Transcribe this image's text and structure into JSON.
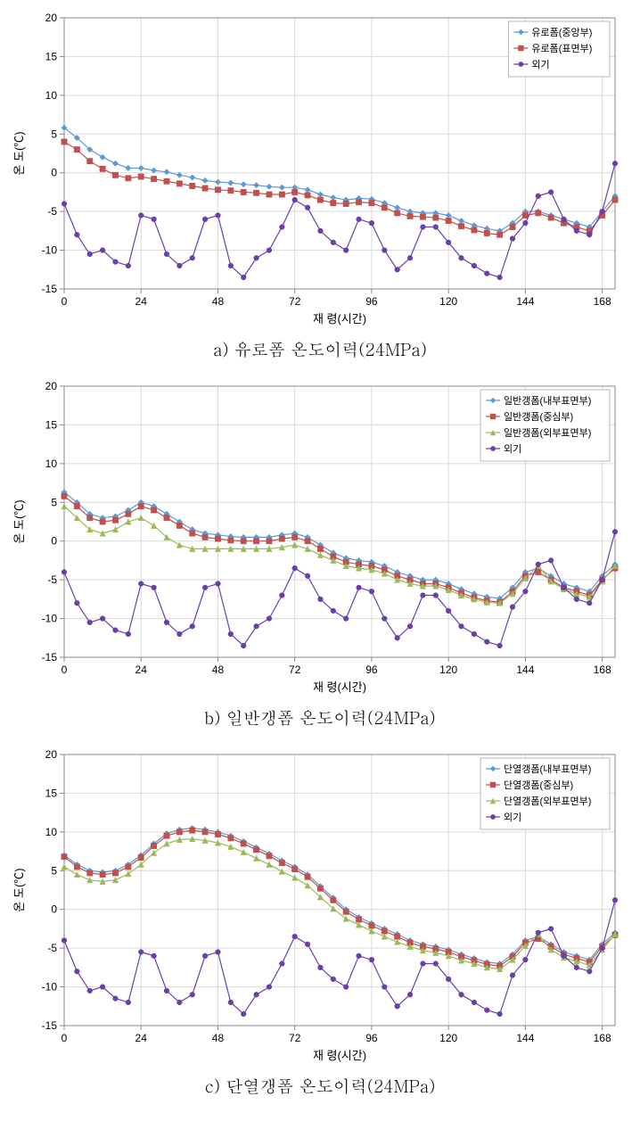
{
  "global": {
    "xlabel": "재 령(시간)",
    "ylabel": "온 도(℃)",
    "xlim": [
      0,
      172
    ],
    "ylim": [
      -15,
      20
    ],
    "xticks": [
      0,
      24,
      48,
      72,
      96,
      120,
      144,
      168
    ],
    "yticks": [
      -15,
      -10,
      -5,
      0,
      5,
      10,
      15,
      20
    ],
    "axis_fontsize": 13,
    "tick_fontsize": 12,
    "legend_fontsize": 11,
    "grid_color": "#d9d9d9",
    "border_color": "#888888",
    "plot_bg": "#ffffff",
    "label_color": "#000000",
    "marker_size": 3.2,
    "line_width": 1.2
  },
  "outdoor_x": [
    0,
    4,
    8,
    12,
    16,
    20,
    24,
    28,
    32,
    36,
    40,
    44,
    48,
    52,
    56,
    60,
    64,
    68,
    72,
    76,
    80,
    84,
    88,
    92,
    96,
    100,
    104,
    108,
    112,
    116,
    120,
    124,
    128,
    132,
    136,
    140,
    144,
    148,
    152,
    156,
    160,
    164,
    168,
    172
  ],
  "outdoor_y": [
    -4,
    -8,
    -10.5,
    -10,
    -11.5,
    -12,
    -5.5,
    -6,
    -10.5,
    -12,
    -11,
    -6,
    -5.5,
    -12,
    -13.5,
    -11,
    -10,
    -7,
    -3.5,
    -4.5,
    -7.5,
    -9,
    -10,
    -6,
    -6.5,
    -10,
    -12.5,
    -11,
    -7,
    -7,
    -9,
    -11,
    -12,
    -13,
    -13.5,
    -8.5,
    -6.5,
    -3,
    -2.5,
    -6,
    -7.5,
    -8,
    -5,
    1.2
  ],
  "outdoor_color": "#6a3faa",
  "charts": [
    {
      "id": "chart-a",
      "caption": "a) 유로폼 온도이력(24MPa)",
      "legend_pos": "topright",
      "series": [
        {
          "name": "유로폼(중앙부)",
          "color": "#5b9bd5",
          "marker": "diamond",
          "x": [
            0,
            4,
            8,
            12,
            16,
            20,
            24,
            28,
            32,
            36,
            40,
            44,
            48,
            52,
            56,
            60,
            64,
            68,
            72,
            76,
            80,
            84,
            88,
            92,
            96,
            100,
            104,
            108,
            112,
            116,
            120,
            124,
            128,
            132,
            136,
            140,
            144,
            148,
            152,
            156,
            160,
            164,
            168,
            172
          ],
          "y": [
            5.8,
            4.5,
            3,
            2,
            1.2,
            0.6,
            0.6,
            0.3,
            0.1,
            -0.3,
            -0.6,
            -1,
            -1.2,
            -1.3,
            -1.5,
            -1.6,
            -1.8,
            -1.9,
            -1.9,
            -2.2,
            -2.8,
            -3.2,
            -3.5,
            -3.3,
            -3.4,
            -3.9,
            -4.5,
            -5,
            -5.2,
            -5.2,
            -5.5,
            -6.2,
            -6.8,
            -7.2,
            -7.5,
            -6.5,
            -5,
            -5,
            -5.5,
            -6,
            -6.5,
            -7,
            -5,
            -3
          ]
        },
        {
          "name": "유로폼(표면부)",
          "color": "#c0504d",
          "marker": "square",
          "x": [
            0,
            4,
            8,
            12,
            16,
            20,
            24,
            28,
            32,
            36,
            40,
            44,
            48,
            52,
            56,
            60,
            64,
            68,
            72,
            76,
            80,
            84,
            88,
            92,
            96,
            100,
            104,
            108,
            112,
            116,
            120,
            124,
            128,
            132,
            136,
            140,
            144,
            148,
            152,
            156,
            160,
            164,
            168,
            172
          ],
          "y": [
            4,
            3,
            1.5,
            0.5,
            -0.3,
            -0.7,
            -0.5,
            -0.8,
            -1.1,
            -1.4,
            -1.7,
            -2,
            -2.2,
            -2.3,
            -2.5,
            -2.6,
            -2.8,
            -2.8,
            -2.5,
            -2.9,
            -3.5,
            -3.9,
            -4,
            -3.8,
            -3.9,
            -4.5,
            -5.2,
            -5.6,
            -5.7,
            -5.8,
            -6.2,
            -6.9,
            -7.4,
            -7.8,
            -8,
            -7,
            -5.5,
            -5.2,
            -5.8,
            -6.5,
            -7,
            -7.5,
            -5.5,
            -3.5
          ]
        },
        {
          "name": "외기",
          "color": "#6a3faa",
          "marker": "circle",
          "use_outdoor": true
        }
      ]
    },
    {
      "id": "chart-b",
      "caption": "b) 일반갱폼 온도이력(24MPa)",
      "legend_pos": "topright",
      "series": [
        {
          "name": "일반갱폼(내부표면부)",
          "color": "#5b9bd5",
          "marker": "diamond",
          "x": [
            0,
            4,
            8,
            12,
            16,
            20,
            24,
            28,
            32,
            36,
            40,
            44,
            48,
            52,
            56,
            60,
            64,
            68,
            72,
            76,
            80,
            84,
            88,
            92,
            96,
            100,
            104,
            108,
            112,
            116,
            120,
            124,
            128,
            132,
            136,
            140,
            144,
            148,
            152,
            156,
            160,
            164,
            168,
            172
          ],
          "y": [
            6.3,
            5,
            3.5,
            3,
            3.2,
            4,
            5,
            4.5,
            3.5,
            2.5,
            1.5,
            1,
            0.8,
            0.6,
            0.5,
            0.5,
            0.5,
            0.8,
            1,
            0.5,
            -0.5,
            -1.5,
            -2.2,
            -2.5,
            -2.7,
            -3.2,
            -4,
            -4.5,
            -5,
            -5,
            -5.5,
            -6.2,
            -6.8,
            -7.2,
            -7.4,
            -6,
            -4,
            -3.5,
            -4.5,
            -5.5,
            -6,
            -6.5,
            -4.5,
            -3
          ]
        },
        {
          "name": "일반갱폼(중심부)",
          "color": "#c0504d",
          "marker": "square",
          "x": [
            0,
            4,
            8,
            12,
            16,
            20,
            24,
            28,
            32,
            36,
            40,
            44,
            48,
            52,
            56,
            60,
            64,
            68,
            72,
            76,
            80,
            84,
            88,
            92,
            96,
            100,
            104,
            108,
            112,
            116,
            120,
            124,
            128,
            132,
            136,
            140,
            144,
            148,
            152,
            156,
            160,
            164,
            168,
            172
          ],
          "y": [
            5.8,
            4.5,
            3,
            2.5,
            2.7,
            3.5,
            4.5,
            4,
            3,
            2,
            1,
            0.5,
            0.3,
            0.1,
            0,
            0,
            0,
            0.3,
            0.5,
            0,
            -1,
            -2,
            -2.7,
            -3,
            -3.2,
            -3.7,
            -4.5,
            -5,
            -5.5,
            -5.5,
            -6,
            -6.7,
            -7.3,
            -7.7,
            -7.9,
            -6.5,
            -4.5,
            -4,
            -5,
            -6,
            -6.5,
            -7,
            -5,
            -3.5
          ]
        },
        {
          "name": "일반갱폼(외부표면부)",
          "color": "#9bbb59",
          "marker": "triangle",
          "x": [
            0,
            4,
            8,
            12,
            16,
            20,
            24,
            28,
            32,
            36,
            40,
            44,
            48,
            52,
            56,
            60,
            64,
            68,
            72,
            76,
            80,
            84,
            88,
            92,
            96,
            100,
            104,
            108,
            112,
            116,
            120,
            124,
            128,
            132,
            136,
            140,
            144,
            148,
            152,
            156,
            160,
            164,
            168,
            172
          ],
          "y": [
            4.5,
            3,
            1.5,
            1,
            1.5,
            2.5,
            3,
            2,
            0.5,
            -0.5,
            -1,
            -1,
            -1,
            -1,
            -1,
            -1,
            -1,
            -0.8,
            -0.5,
            -1,
            -1.8,
            -2.5,
            -3.2,
            -3.5,
            -3.7,
            -4.2,
            -5,
            -5.5,
            -5.8,
            -5.8,
            -6.3,
            -7,
            -7.5,
            -7.9,
            -8,
            -6.8,
            -4.8,
            -3.2,
            -5.2,
            -6.2,
            -6.8,
            -7.2,
            -5.2,
            -3.2
          ]
        },
        {
          "name": "외기",
          "color": "#6a3faa",
          "marker": "circle",
          "use_outdoor": true
        }
      ]
    },
    {
      "id": "chart-c",
      "caption": "c) 단열갱폼 온도이력(24MPa)",
      "legend_pos": "topright",
      "series": [
        {
          "name": "단열갱폼(내부표면부)",
          "color": "#5b9bd5",
          "marker": "diamond",
          "x": [
            0,
            4,
            8,
            12,
            16,
            20,
            24,
            28,
            32,
            36,
            40,
            44,
            48,
            52,
            56,
            60,
            64,
            68,
            72,
            76,
            80,
            84,
            88,
            92,
            96,
            100,
            104,
            108,
            112,
            116,
            120,
            124,
            128,
            132,
            136,
            140,
            144,
            148,
            152,
            156,
            160,
            164,
            168,
            172
          ],
          "y": [
            7,
            5.8,
            5,
            4.8,
            5,
            5.8,
            7,
            8.5,
            9.8,
            10.3,
            10.5,
            10.3,
            10,
            9.5,
            8.8,
            8,
            7.2,
            6.3,
            5.5,
            4.5,
            3,
            1.5,
            0,
            -1,
            -1.8,
            -2.5,
            -3.2,
            -4,
            -4.5,
            -4.8,
            -5.2,
            -5.8,
            -6.3,
            -6.8,
            -7,
            -5.8,
            -4,
            -3.5,
            -4.5,
            -5.5,
            -6,
            -6.5,
            -4.5,
            -3
          ]
        },
        {
          "name": "단열갱폼(중심부)",
          "color": "#c0504d",
          "marker": "square",
          "x": [
            0,
            4,
            8,
            12,
            16,
            20,
            24,
            28,
            32,
            36,
            40,
            44,
            48,
            52,
            56,
            60,
            64,
            68,
            72,
            76,
            80,
            84,
            88,
            92,
            96,
            100,
            104,
            108,
            112,
            116,
            120,
            124,
            128,
            132,
            136,
            140,
            144,
            148,
            152,
            156,
            160,
            164,
            168,
            172
          ],
          "y": [
            6.8,
            5.5,
            4.7,
            4.5,
            4.7,
            5.5,
            6.7,
            8.2,
            9.5,
            10,
            10.2,
            10,
            9.7,
            9.2,
            8.5,
            7.7,
            6.9,
            6,
            5.2,
            4.2,
            2.7,
            1.2,
            -0.3,
            -1.3,
            -2.1,
            -2.8,
            -3.5,
            -4.3,
            -4.8,
            -5.1,
            -5.5,
            -6.1,
            -6.6,
            -7.1,
            -7.3,
            -6.1,
            -4.3,
            -3.8,
            -4.8,
            -5.8,
            -6.3,
            -6.8,
            -4.8,
            -3.3
          ]
        },
        {
          "name": "단열갱폼(외부표면부)",
          "color": "#9bbb59",
          "marker": "triangle",
          "x": [
            0,
            4,
            8,
            12,
            16,
            20,
            24,
            28,
            32,
            36,
            40,
            44,
            48,
            52,
            56,
            60,
            64,
            68,
            72,
            76,
            80,
            84,
            88,
            92,
            96,
            100,
            104,
            108,
            112,
            116,
            120,
            124,
            128,
            132,
            136,
            140,
            144,
            148,
            152,
            156,
            160,
            164,
            168,
            172
          ],
          "y": [
            5.5,
            4.5,
            3.8,
            3.6,
            3.8,
            4.6,
            5.8,
            7.3,
            8.5,
            9,
            9.1,
            8.9,
            8.6,
            8.1,
            7.4,
            6.6,
            5.8,
            4.9,
            4.1,
            3.1,
            1.6,
            0.1,
            -1.2,
            -2,
            -2.8,
            -3.5,
            -4.2,
            -4.8,
            -5.3,
            -5.6,
            -6,
            -6.6,
            -7,
            -7.5,
            -7.7,
            -6.5,
            -4.7,
            -3.2,
            -5.2,
            -6.2,
            -6.7,
            -7.2,
            -5.2,
            -3.2
          ]
        },
        {
          "name": "외기",
          "color": "#6a3faa",
          "marker": "circle",
          "use_outdoor": true
        }
      ]
    }
  ]
}
